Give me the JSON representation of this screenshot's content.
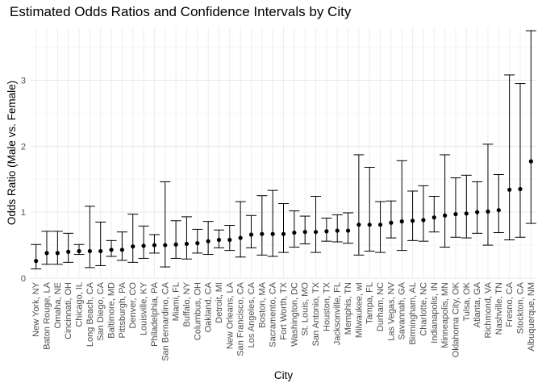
{
  "chart_data": {
    "type": "scatter",
    "title": "Estimated Odds Ratios and Confidence Intervals by City",
    "xlabel": "City",
    "ylabel": "Odds Ratio (Male vs. Female)",
    "ylim": [
      0,
      3.8
    ],
    "yticks": [
      0,
      1,
      2,
      3
    ],
    "grid": true,
    "legend": "none",
    "categories": [
      "New York, NY",
      "Baton Rouge, LA",
      "Omaha, NE",
      "Cincinnati, OH",
      "Chicago, IL",
      "Long Beach, CA",
      "San Diego, CA",
      "Baltimore, MD",
      "Pittsburgh, PA",
      "Denver, CO",
      "Louisville, KY",
      "Philadelphia, PA",
      "San Bernardino, CA",
      "Miami, FL",
      "Buffalo, NY",
      "Columbus, OH",
      "Oakland, CA",
      "Detroit, MI",
      "New Orleans, LA",
      "San Francisco, CA",
      "Los Angeles, CA",
      "Boston, MA",
      "Sacramento, CA",
      "Fort Worth, TX",
      "Washington, DC",
      "St. Louis, MO",
      "San Antonio, TX",
      "Houston, TX",
      "Jacksonville, FL",
      "Memphis, TN",
      "Milwaukee, wI",
      "Tampa, FL",
      "Durham, NC",
      "Las Vegas, NV",
      "Savannah, GA",
      "Birmingham, AL",
      "Charlotte, NC",
      "Indianapolis, IN",
      "Minneapolis, MN",
      "Oklahoma City, OK",
      "Tulsa, OK",
      "Atlanta, GA",
      "Richmond, VA",
      "Nashville, TN",
      "Fresno, CA",
      "Stockton, CA",
      "Albuquerque, NM"
    ],
    "series": [
      {
        "estimate": [
          0.26,
          0.38,
          0.38,
          0.4,
          0.41,
          0.41,
          0.41,
          0.43,
          0.43,
          0.48,
          0.49,
          0.5,
          0.5,
          0.51,
          0.52,
          0.53,
          0.56,
          0.58,
          0.58,
          0.61,
          0.66,
          0.67,
          0.67,
          0.67,
          0.69,
          0.7,
          0.7,
          0.71,
          0.72,
          0.72,
          0.81,
          0.81,
          0.81,
          0.84,
          0.86,
          0.87,
          0.88,
          0.92,
          0.95,
          0.97,
          0.98,
          1.0,
          1.01,
          1.03,
          1.34,
          1.35,
          1.77
        ],
        "lower": [
          0.14,
          0.21,
          0.21,
          0.24,
          0.36,
          0.16,
          0.19,
          0.33,
          0.27,
          0.24,
          0.3,
          0.38,
          0.17,
          0.3,
          0.29,
          0.38,
          0.36,
          0.46,
          0.42,
          0.32,
          0.46,
          0.35,
          0.33,
          0.39,
          0.47,
          0.52,
          0.39,
          0.56,
          0.55,
          0.53,
          0.35,
          0.41,
          0.39,
          0.61,
          0.42,
          0.57,
          0.56,
          0.7,
          0.47,
          0.62,
          0.61,
          0.68,
          0.5,
          0.69,
          0.58,
          0.62,
          0.83
        ],
        "upper": [
          0.51,
          0.71,
          0.71,
          0.68,
          0.51,
          1.09,
          0.85,
          0.57,
          0.7,
          0.97,
          0.79,
          0.66,
          1.46,
          0.87,
          0.93,
          0.74,
          0.86,
          0.73,
          0.8,
          1.16,
          0.95,
          1.25,
          1.33,
          1.13,
          1.02,
          0.94,
          1.24,
          0.91,
          0.96,
          0.99,
          1.87,
          1.68,
          1.16,
          1.17,
          1.78,
          1.32,
          1.4,
          1.24,
          1.87,
          1.52,
          1.56,
          1.46,
          2.03,
          1.57,
          3.08,
          2.95,
          3.75
        ]
      }
    ]
  }
}
